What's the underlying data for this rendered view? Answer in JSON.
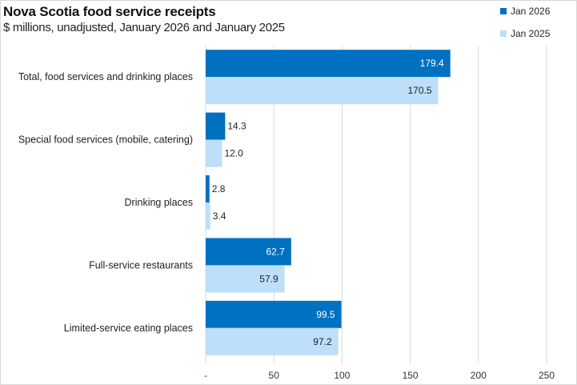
{
  "chart_data": {
    "type": "bar",
    "orientation": "horizontal",
    "title": "Nova Scotia food service receipts",
    "subtitle": "$ millions, unadjusted, January 2026 and January 2025",
    "xlabel": "",
    "ylabel": "",
    "xlim": [
      0,
      250
    ],
    "xticks": [
      0,
      50,
      100,
      150,
      200,
      250
    ],
    "xtick_labels": [
      "-",
      "50",
      "100",
      "150",
      "200",
      "250"
    ],
    "grid": "vertical",
    "legend_position": "top-right",
    "categories": [
      "Total, food services and drinking places",
      "Special food services (mobile, catering)",
      "Drinking places",
      "Full-service restaurants",
      "Limited-service eating places"
    ],
    "series": [
      {
        "name": "Jan 2026",
        "color": "#0070C0",
        "label_color": "#ffffff",
        "values": [
          179.4,
          14.3,
          2.8,
          62.7,
          99.5
        ],
        "labels": [
          "179.4",
          "14.3",
          "2.8",
          "62.7",
          "99.5"
        ]
      },
      {
        "name": "Jan 2025",
        "color": "#BDDFF9",
        "label_color": "#222222",
        "values": [
          170.5,
          12.0,
          3.4,
          57.9,
          97.2
        ],
        "labels": [
          "170.5",
          "12.0",
          "3.4",
          "57.9",
          "97.2"
        ]
      }
    ]
  }
}
